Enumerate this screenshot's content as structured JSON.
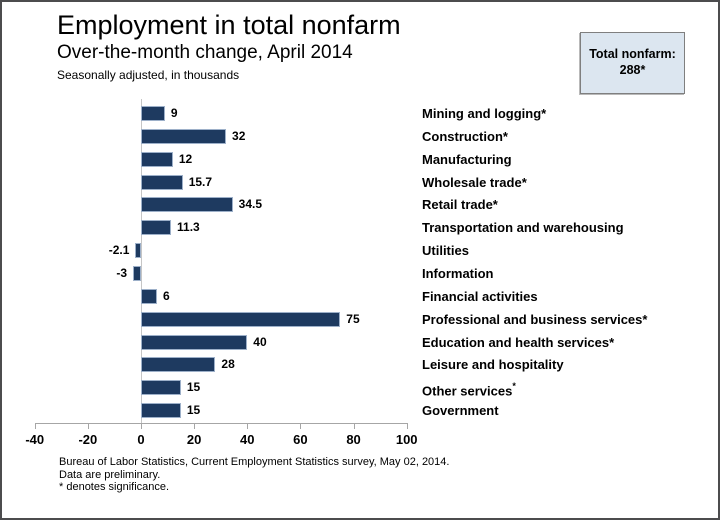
{
  "header": {
    "title": "Employment in total nonfarm",
    "subtitle": "Over-the-month change, April 2014",
    "units_note": "Seasonally adjusted, in thousands"
  },
  "callout": {
    "label": "Total nonfarm:",
    "value": "288*"
  },
  "chart_data": {
    "type": "bar",
    "orientation": "horizontal",
    "title": "Employment in total nonfarm",
    "subtitle": "Over-the-month change, April 2014",
    "units": "Seasonally adjusted, in thousands",
    "xlabel": "",
    "ylabel": "",
    "xlim": [
      -40,
      100
    ],
    "xticks": [
      -40,
      -20,
      0,
      20,
      40,
      60,
      80,
      100
    ],
    "grid": "zero-baseline-only",
    "legend": "none",
    "categories": [
      "Mining and logging*",
      "Construction*",
      "Manufacturing",
      "Wholesale trade*",
      "Retail trade*",
      "Transportation and warehousing",
      "Utilities",
      "Information",
      "Financial activities",
      "Professional and business services*",
      "Education and health services*",
      "Leisure and hospitality",
      "Other services*",
      "Government"
    ],
    "values": [
      9,
      32,
      12,
      15.7,
      34.5,
      11.3,
      -2.1,
      -3,
      6,
      75,
      40,
      28,
      15,
      15
    ],
    "value_labels": [
      "9",
      "32",
      "12",
      "15.7",
      "34.5",
      "11.3",
      "-2.1",
      "-3",
      "6",
      "75",
      "40",
      "28",
      "15",
      "15"
    ],
    "superscript_asterisk_category_index": 12,
    "colors": {
      "bar_fill": "#1e3a60",
      "bar_border": "#9db0c9",
      "axis": "#a6a6a6",
      "zero_line": "#c6c6c6"
    }
  },
  "footer": {
    "lines": [
      "Bureau of Labor Statistics, Current Employment Statistics survey, May 02, 2014.",
      "Data are preliminary.",
      "* denotes significance."
    ]
  }
}
